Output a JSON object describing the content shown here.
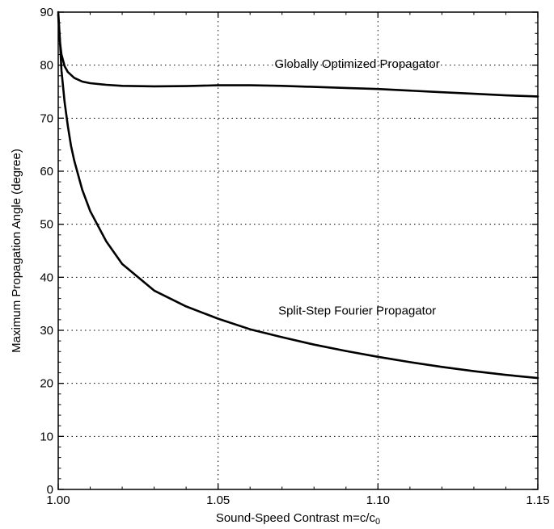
{
  "chart_data": {
    "type": "line",
    "xlabel": "Sound-Speed Contrast m=c/c",
    "xlabel_sub": "0",
    "ylabel": "Maximum Propagation Angle (degree)",
    "xlim": [
      1.0,
      1.15
    ],
    "ylim": [
      0,
      90
    ],
    "x_ticks": [
      {
        "value": 1.0,
        "label": "1.00"
      },
      {
        "value": 1.05,
        "label": "1.05"
      },
      {
        "value": 1.1,
        "label": "1.10"
      },
      {
        "value": 1.15,
        "label": "1.15"
      }
    ],
    "y_ticks": [
      {
        "value": 0,
        "label": "0"
      },
      {
        "value": 10,
        "label": "10"
      },
      {
        "value": 20,
        "label": "20"
      },
      {
        "value": 30,
        "label": "30"
      },
      {
        "value": 40,
        "label": "40"
      },
      {
        "value": 50,
        "label": "50"
      },
      {
        "value": 60,
        "label": "60"
      },
      {
        "value": 70,
        "label": "70"
      },
      {
        "value": 80,
        "label": "80"
      },
      {
        "value": 90,
        "label": "90"
      }
    ],
    "grid": true,
    "grid_style": "dotted",
    "series": [
      {
        "name": "Globally Optimized Propagator",
        "x": [
          1.0,
          1.0005,
          1.001,
          1.002,
          1.003,
          1.005,
          1.0075,
          1.01,
          1.015,
          1.02,
          1.03,
          1.04,
          1.05,
          1.06,
          1.07,
          1.08,
          1.09,
          1.1,
          1.11,
          1.12,
          1.13,
          1.14,
          1.15
        ],
        "y": [
          89.5,
          84.5,
          82.0,
          79.8,
          78.7,
          77.6,
          76.9,
          76.6,
          76.3,
          76.1,
          76.0,
          76.05,
          76.2,
          76.2,
          76.1,
          75.9,
          75.7,
          75.5,
          75.2,
          74.9,
          74.6,
          74.3,
          74.1
        ]
      },
      {
        "name": "Split-Step Fourier Propagator",
        "x": [
          1.0,
          1.0005,
          1.001,
          1.002,
          1.003,
          1.004,
          1.005,
          1.0075,
          1.01,
          1.015,
          1.02,
          1.03,
          1.04,
          1.05,
          1.06,
          1.07,
          1.08,
          1.09,
          1.1,
          1.11,
          1.12,
          1.13,
          1.14,
          1.15
        ],
        "y": [
          90.0,
          85.0,
          79.0,
          73.0,
          68.5,
          64.8,
          62.0,
          56.5,
          52.5,
          46.8,
          42.5,
          37.5,
          34.5,
          32.2,
          30.2,
          28.7,
          27.3,
          26.1,
          25.0,
          24.0,
          23.1,
          22.3,
          21.6,
          21.0
        ]
      }
    ],
    "annotations": [
      {
        "text": "Globally Optimized Propagator",
        "x": 1.0935,
        "y": 79.5
      },
      {
        "text": "Split-Step Fourier Propagator",
        "x": 1.0935,
        "y": 33.0
      }
    ]
  }
}
